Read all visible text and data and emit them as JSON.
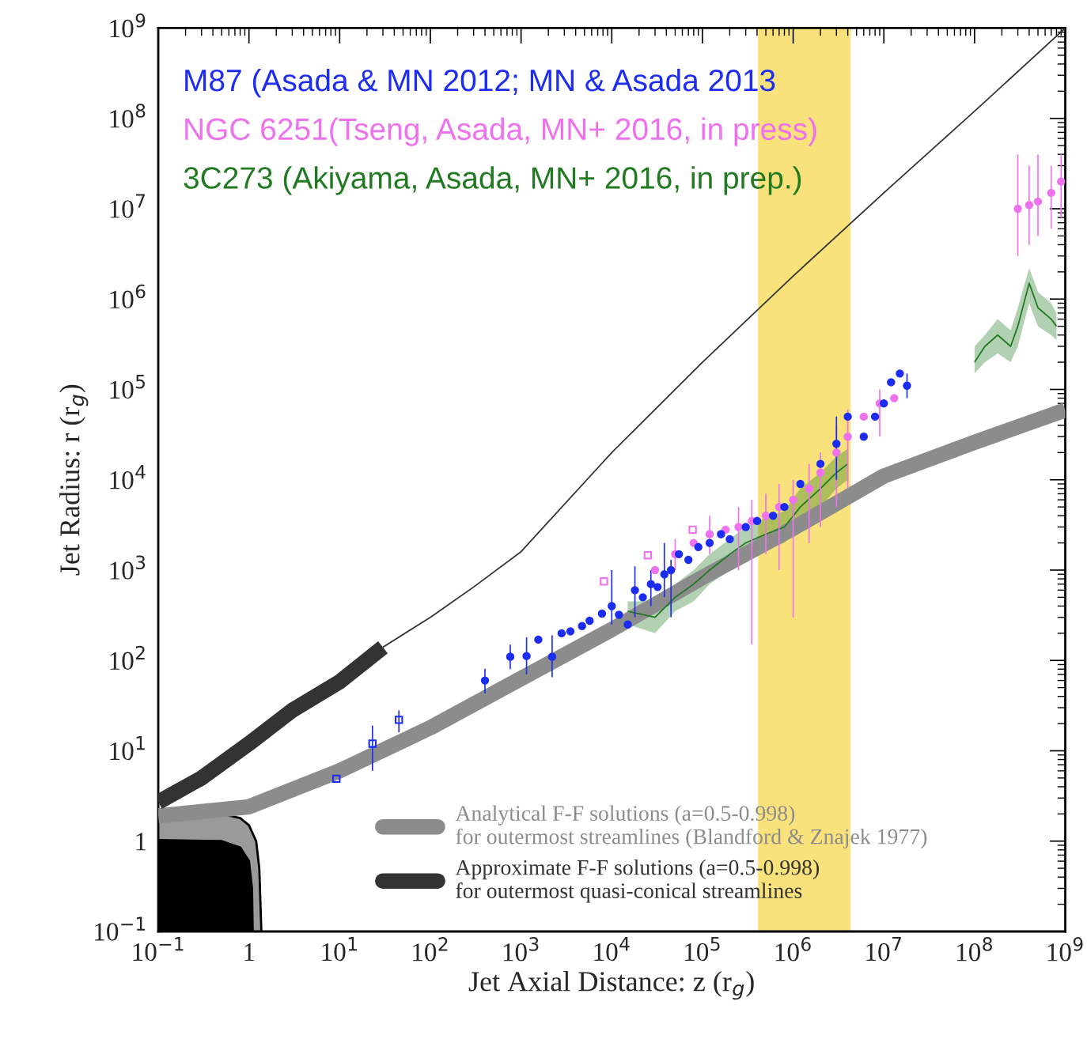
{
  "chart_data": {
    "type": "scatter",
    "log": "xy",
    "xlabel": "Jet Axial Distance: z (r$_{g}$)",
    "ylabel": "Jet Radius: r (r$_{g}$)",
    "xlim": [
      0.1,
      1000000000
    ],
    "ylim": [
      0.1,
      1000000000
    ],
    "xticks": [
      {
        "value": 0.1,
        "label": "10$^{−1}$"
      },
      1,
      {
        "value": 10,
        "label": "10$^{1}$"
      },
      {
        "value": 100,
        "label": "10$^{2}$"
      },
      {
        "value": 1000,
        "label": "10$^{3}$"
      },
      {
        "value": 10000,
        "label": "10$^{4}$"
      },
      {
        "value": 100000,
        "label": "10$^{5}$"
      },
      {
        "value": 1000000,
        "label": "10$^{6}$"
      },
      {
        "value": 10000000,
        "label": "10$^{7}$"
      },
      {
        "value": 100000000,
        "label": "10$^{8}$"
      },
      {
        "value": 1000000000,
        "label": "10$^{9}$"
      }
    ],
    "yticks": [
      {
        "value": 0.1,
        "label": "10$^{−1}$"
      },
      1,
      {
        "value": 10,
        "label": "10$^{1}$"
      },
      {
        "value": 100,
        "label": "10$^{2}$"
      },
      {
        "value": 1000,
        "label": "10$^{3}$"
      },
      {
        "value": 10000,
        "label": "10$^{4}$"
      },
      {
        "value": 100000,
        "label": "10$^{5}$"
      },
      {
        "value": 1000000,
        "label": "10$^{6}$"
      },
      {
        "value": 10000000,
        "label": "10$^{7}$"
      },
      {
        "value": 100000000,
        "label": "10$^{8}$"
      },
      {
        "value": 1000000000,
        "label": "10$^{9}$"
      }
    ],
    "legend": "bottom right",
    "bands": [
      {
        "axis": "x",
        "from": 410000,
        "to": 4300000,
        "color": "#f9e27c"
      }
    ],
    "series": [
      {
        "type": "area",
        "color": "#9a9a9a",
        "x": [
          0.1,
          0.5,
          0.8,
          1.0,
          1.2,
          1.3,
          1.37
        ],
        "values": [
          2.05,
          2.0,
          1.8,
          1.5,
          1.0,
          0.5,
          0.1
        ]
      },
      {
        "type": "area",
        "color": "#000000",
        "x": [
          0.1,
          0.5,
          0.8,
          1.0,
          1.08,
          1.1
        ],
        "values": [
          1.03,
          1.0,
          0.85,
          0.6,
          0.3,
          0.1
        ]
      },
      {
        "name": "Analytical F-F solutions (a=0.5-0.998)\nfor outermost streamlines (Blandford & Znajek 1977)",
        "type": "line",
        "color": "#8c8c8c",
        "x": [
          0.1,
          1,
          10,
          100,
          1000,
          10000,
          100000,
          1000000,
          10000000,
          100000000,
          1000000000
        ],
        "values": [
          1.9,
          2.4,
          6,
          18,
          63,
          220,
          830,
          2900,
          11000,
          26000,
          59000
        ]
      },
      {
        "name": "Approximate F-F solutions (a=0.5-0.998)\nfor outermost quasi-conical streamlines",
        "type": "line",
        "color": "#333333",
        "x": [
          0.1,
          0.3,
          1,
          3,
          10,
          30
        ],
        "values": [
          2.7,
          5,
          12,
          28,
          58,
          140
        ]
      },
      {
        "type": "line",
        "color": "#333333",
        "x": [
          30,
          100,
          300,
          1000,
          10000,
          100000,
          1000000,
          10000000,
          100000000,
          1000000000
        ],
        "values": [
          140,
          300,
          650,
          1600,
          20000,
          200000,
          1800000,
          15000000,
          120000000,
          1000000000
        ]
      },
      {
        "name": "3C273 (Akiyama, Asada, MN+ 2016, in prep.)",
        "type": "line",
        "color": "#217a21",
        "x": [
          15000,
          30000,
          50000,
          80000,
          120000,
          200000,
          300000,
          500000,
          800000,
          1200000,
          2000000,
          3000000,
          4000000,
          6000000,
          100000000,
          130000000,
          180000000,
          250000000,
          300000000,
          400000000,
          500000000,
          700000000,
          800000000
        ],
        "values": [
          350,
          300,
          500,
          700,
          1000,
          1500,
          2000,
          2500,
          3000,
          5000,
          8000,
          12000,
          15000,
          null,
          200000,
          300000,
          400000,
          300000,
          500000,
          1500000,
          800000,
          600000,
          500000
        ],
        "lower": [
          250,
          200,
          350,
          450,
          700,
          1000,
          1300,
          1700,
          2000,
          3000,
          5000,
          8000,
          10000,
          null,
          150000,
          200000,
          250000,
          200000,
          300000,
          900000,
          500000,
          400000,
          350000
        ],
        "upper": [
          450,
          450,
          700,
          1000,
          1500,
          2200,
          3000,
          3800,
          4500,
          8000,
          12000,
          18000,
          22000,
          null,
          300000,
          400000,
          600000,
          450000,
          800000,
          2200000,
          1200000,
          900000,
          700000
        ]
      },
      {
        "name": "NGC 6251(Tseng, Asada, MN+ 2016, in press)",
        "color": "#ee72ee",
        "marker": "circle",
        "x": [
          30000,
          50000,
          80000,
          120000,
          180000,
          250000,
          350000,
          500000,
          700000,
          1000000,
          1500000,
          2000000,
          3000000,
          4000000,
          6000000,
          9000000,
          13000000,
          300000000,
          400000000,
          500000000,
          700000000,
          900000000
        ],
        "values": [
          1000,
          1500,
          2000,
          2500,
          2800,
          3000,
          3500,
          4000,
          5000,
          6000,
          8000,
          12000,
          20000,
          30000,
          50000,
          70000,
          80000,
          10000000,
          11000000,
          12000000,
          15000000,
          20000000
        ],
        "errors": [
          null,
          [
            1000,
            2200
          ],
          null,
          [
            1500,
            4000
          ],
          null,
          [
            1000,
            5000
          ],
          [
            150,
            6000
          ],
          [
            1500,
            7000
          ],
          [
            1000,
            9000
          ],
          [
            300,
            10000
          ],
          [
            2000,
            15000
          ],
          [
            3000,
            20000
          ],
          [
            5000,
            40000
          ],
          [
            8000,
            60000
          ],
          null,
          [
            30000,
            100000
          ],
          null,
          [
            3000000,
            40000000
          ],
          [
            4000000,
            30000000
          ],
          [
            5000000,
            40000000
          ],
          [
            6000000,
            30000000
          ],
          [
            8000000,
            40000000
          ]
        ]
      },
      {
        "color": "#ee72ee",
        "marker": "square",
        "x": [
          8200,
          25000,
          78000
        ],
        "values": [
          750,
          1460,
          2800
        ]
      },
      {
        "name": "M87 (Asada & MN 2012; MN & Asada 2013",
        "color": "#1c2cf0",
        "marker": "circle",
        "x": [
          400,
          760,
          1150,
          1550,
          2200,
          2800,
          3500,
          4700,
          5700,
          7800,
          10000,
          12000,
          15000,
          18000,
          22000,
          27000,
          32000,
          38000,
          45000,
          55000,
          70000,
          90000,
          120000,
          160000,
          200000,
          300000,
          400000,
          600000,
          800000,
          1200000,
          2000000,
          3000000,
          4000000,
          6000000,
          8000000,
          10000000,
          12000000,
          15000000,
          18000000
        ],
        "values": [
          60,
          110,
          112,
          170,
          110,
          200,
          210,
          240,
          275,
          330,
          400,
          320,
          250,
          600,
          500,
          700,
          650,
          900,
          1000,
          1500,
          1300,
          1800,
          2000,
          2500,
          2200,
          3000,
          3500,
          4000,
          5000,
          9000,
          15000,
          25000,
          50000,
          30000,
          50000,
          70000,
          120000,
          150000,
          110000
        ],
        "errors": [
          [
            43,
            81
          ],
          [
            80,
            150
          ],
          [
            70,
            180
          ],
          null,
          [
            65,
            190
          ],
          null,
          null,
          null,
          null,
          null,
          [
            250,
            1000
          ],
          null,
          null,
          [
            300,
            1100
          ],
          null,
          [
            400,
            1000
          ],
          null,
          [
            500,
            2000
          ],
          [
            300,
            1300
          ],
          null,
          null,
          null,
          null,
          null,
          null,
          null,
          null,
          null,
          null,
          null,
          null,
          [
            10000,
            50000
          ],
          null,
          null,
          null,
          null,
          null,
          null,
          [
            80000,
            150000
          ]
        ]
      },
      {
        "color": "#1c2cf0",
        "marker": "square",
        "x": [
          9.2,
          23,
          45
        ],
        "values": [
          4.9,
          12,
          22
        ],
        "errors": [
          null,
          [
            6,
            19
          ],
          [
            16,
            28
          ]
        ]
      }
    ]
  }
}
